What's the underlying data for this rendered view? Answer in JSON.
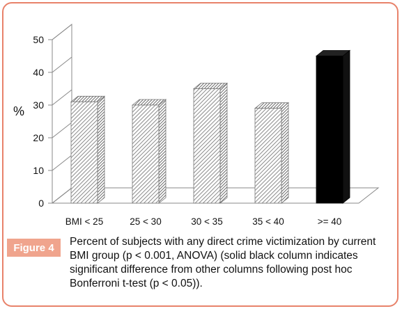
{
  "chart_data": {
    "type": "bar",
    "title": "",
    "xlabel": "",
    "ylabel": "%",
    "ylim": [
      0,
      50
    ],
    "yticks": [
      0,
      10,
      20,
      30,
      40,
      50
    ],
    "categories": [
      "BMI < 25",
      "25 < 30",
      "30 < 35",
      "35 < 40",
      ">= 40"
    ],
    "values": [
      31,
      30,
      35,
      29,
      45
    ],
    "highlight_index": 4,
    "colors": {
      "hatched": "#9a9a9a",
      "solid": "#000000",
      "frame": "#e8826a",
      "badge": "#f0a48d"
    },
    "grid": false,
    "style": "3d"
  },
  "figure": {
    "label": "Figure 4",
    "caption": "Percent of subjects with any direct crime victimization by current BMI group (p < 0.001, ANOVA) (solid black column indicates significant difference from other columns following post hoc Bonferroni t-test (p < 0.05))."
  }
}
